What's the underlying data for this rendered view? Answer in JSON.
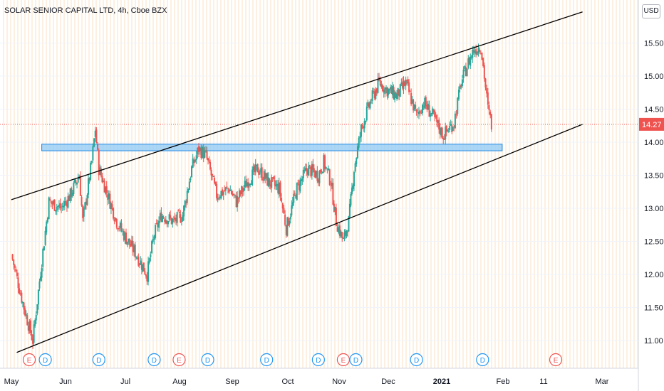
{
  "header": {
    "title": "SOLAR SENIOR CAPITAL LTD, 4h, Cboe BZX",
    "currency": "USD"
  },
  "colors": {
    "up": "#26a69a",
    "down": "#ef5350",
    "zone_fill": "#8ec9f5",
    "zone_stroke": "#1e88e5",
    "trendline": "#000000",
    "price_tag": "#ef5350",
    "event_E": "#ef5350",
    "event_D": "#2196f3"
  },
  "chart_data": {
    "type": "candlestick",
    "title": "SOLAR SENIOR CAPITAL LTD, 4h, Cboe BZX",
    "currency": "USD",
    "y_ticks": [
      "15.50",
      "15.00",
      "14.50",
      "14.00",
      "13.50",
      "13.00",
      "12.50",
      "12.00",
      "11.50",
      "11.00"
    ],
    "x_ticks": [
      "May",
      "Jun",
      "Jul",
      "Aug",
      "Sep",
      "Oct",
      "Nov",
      "Dec",
      "2021",
      "Feb",
      "11",
      "Mar"
    ],
    "ylim": [
      10.55,
      16.05
    ],
    "last_price": "14.27",
    "resistance_zone": {
      "from": 13.87,
      "to": 13.97,
      "start": "May 18",
      "end": "Jan 31"
    },
    "trendlines": [
      {
        "name": "upper",
        "from": {
          "date": "May 1",
          "price": 13.13
        },
        "to": {
          "date": "Mar 17",
          "price": 15.97
        }
      },
      {
        "name": "lower",
        "from": {
          "date": "May 4",
          "price": 10.82
        },
        "to": {
          "date": "Mar 17",
          "price": 14.27
        }
      }
    ],
    "events": [
      {
        "type": "E",
        "x": "May 11"
      },
      {
        "type": "D",
        "x": "May 20"
      },
      {
        "type": "D",
        "x": "Jun 19"
      },
      {
        "type": "D",
        "x": "Jul 20"
      },
      {
        "type": "E",
        "x": "Aug 3"
      },
      {
        "type": "D",
        "x": "Aug 19"
      },
      {
        "type": "D",
        "x": "Sep 21"
      },
      {
        "type": "D",
        "x": "Oct 20"
      },
      {
        "type": "E",
        "x": "Nov 3"
      },
      {
        "type": "D",
        "x": "Nov 10"
      },
      {
        "type": "D",
        "x": "Dec 14"
      },
      {
        "type": "D",
        "x": "Jan 20"
      },
      {
        "type": "E",
        "x": "Mar 2"
      }
    ],
    "closes": [
      {
        "date": "May 1",
        "price": 12.3
      },
      {
        "date": "May 8",
        "price": 11.5
      },
      {
        "date": "May 13",
        "price": 11.0
      },
      {
        "date": "May 18",
        "price": 12.2
      },
      {
        "date": "May 22",
        "price": 13.1
      },
      {
        "date": "May 29",
        "price": 13.0
      },
      {
        "date": "Jun 3",
        "price": 13.2
      },
      {
        "date": "Jun 8",
        "price": 13.5
      },
      {
        "date": "Jun 10",
        "price": 12.8
      },
      {
        "date": "Jun 15",
        "price": 13.7
      },
      {
        "date": "Jun 17",
        "price": 14.2
      },
      {
        "date": "Jun 19",
        "price": 13.6
      },
      {
        "date": "Jun 24",
        "price": 13.2
      },
      {
        "date": "Jun 29",
        "price": 12.8
      },
      {
        "date": "Jul 3",
        "price": 12.6
      },
      {
        "date": "Jul 10",
        "price": 12.3
      },
      {
        "date": "Jul 16",
        "price": 12.0
      },
      {
        "date": "Jul 20",
        "price": 12.6
      },
      {
        "date": "Jul 24",
        "price": 12.9
      },
      {
        "date": "Jul 31",
        "price": 12.8
      },
      {
        "date": "Aug 5",
        "price": 12.9
      },
      {
        "date": "Aug 10",
        "price": 13.6
      },
      {
        "date": "Aug 14",
        "price": 13.9
      },
      {
        "date": "Aug 18",
        "price": 13.8
      },
      {
        "date": "Aug 24",
        "price": 13.2
      },
      {
        "date": "Aug 31",
        "price": 13.3
      },
      {
        "date": "Sep 4",
        "price": 13.1
      },
      {
        "date": "Sep 10",
        "price": 13.4
      },
      {
        "date": "Sep 16",
        "price": 13.6
      },
      {
        "date": "Sep 22",
        "price": 13.4
      },
      {
        "date": "Sep 28",
        "price": 13.3
      },
      {
        "date": "Oct 2",
        "price": 12.7
      },
      {
        "date": "Oct 8",
        "price": 13.3
      },
      {
        "date": "Oct 14",
        "price": 13.6
      },
      {
        "date": "Oct 20",
        "price": 13.5
      },
      {
        "date": "Oct 23",
        "price": 13.7
      },
      {
        "date": "Oct 27",
        "price": 13.4
      },
      {
        "date": "Oct 30",
        "price": 12.8
      },
      {
        "date": "Nov 3",
        "price": 12.5
      },
      {
        "date": "Nov 6",
        "price": 12.8
      },
      {
        "date": "Nov 9",
        "price": 13.6
      },
      {
        "date": "Nov 11",
        "price": 13.9
      },
      {
        "date": "Nov 13",
        "price": 14.2
      },
      {
        "date": "Nov 18",
        "price": 14.6
      },
      {
        "date": "Nov 23",
        "price": 14.9
      },
      {
        "date": "Nov 27",
        "price": 14.8
      },
      {
        "date": "Dec 3",
        "price": 14.7
      },
      {
        "date": "Dec 8",
        "price": 14.9
      },
      {
        "date": "Dec 14",
        "price": 14.4
      },
      {
        "date": "Dec 18",
        "price": 14.6
      },
      {
        "date": "Dec 23",
        "price": 14.4
      },
      {
        "date": "Dec 29",
        "price": 14.1
      },
      {
        "date": "Jan 4",
        "price": 14.3
      },
      {
        "date": "Jan 8",
        "price": 14.9
      },
      {
        "date": "Jan 12",
        "price": 15.2
      },
      {
        "date": "Jan 15",
        "price": 15.4
      },
      {
        "date": "Jan 19",
        "price": 15.45
      },
      {
        "date": "Jan 21",
        "price": 15.0
      },
      {
        "date": "Jan 23",
        "price": 14.5
      },
      {
        "date": "Jan 25",
        "price": 14.27
      }
    ]
  }
}
